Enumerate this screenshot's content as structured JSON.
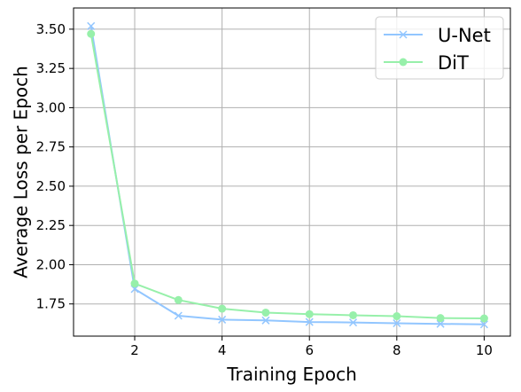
{
  "chart_data": {
    "type": "line",
    "title": "",
    "xlabel": "Training Epoch",
    "ylabel": "Average Loss per Epoch",
    "xlim": [
      0.6,
      10.6
    ],
    "ylim": [
      1.545,
      3.635
    ],
    "xticks": [
      2,
      4,
      6,
      8,
      10
    ],
    "xtick_labels": [
      "2",
      "4",
      "6",
      "8",
      "10"
    ],
    "yticks": [
      1.75,
      2.0,
      2.25,
      2.5,
      2.75,
      3.0,
      3.25,
      3.5
    ],
    "ytick_labels": [
      "1.75",
      "2.00",
      "2.25",
      "2.50",
      "2.75",
      "3.00",
      "3.25",
      "3.50"
    ],
    "grid": true,
    "legend_position": "top-right",
    "x": [
      1,
      2,
      3,
      4,
      5,
      6,
      7,
      8,
      9,
      10
    ],
    "series": [
      {
        "name": "U-Net",
        "color": "#92c6ff",
        "marker": "x",
        "values": [
          3.52,
          1.845,
          1.675,
          1.65,
          1.645,
          1.635,
          1.632,
          1.627,
          1.623,
          1.62
        ]
      },
      {
        "name": "DiT",
        "color": "#97f0aa",
        "marker": "circle",
        "values": [
          3.47,
          1.88,
          1.775,
          1.72,
          1.695,
          1.685,
          1.678,
          1.672,
          1.66,
          1.658
        ]
      }
    ]
  }
}
